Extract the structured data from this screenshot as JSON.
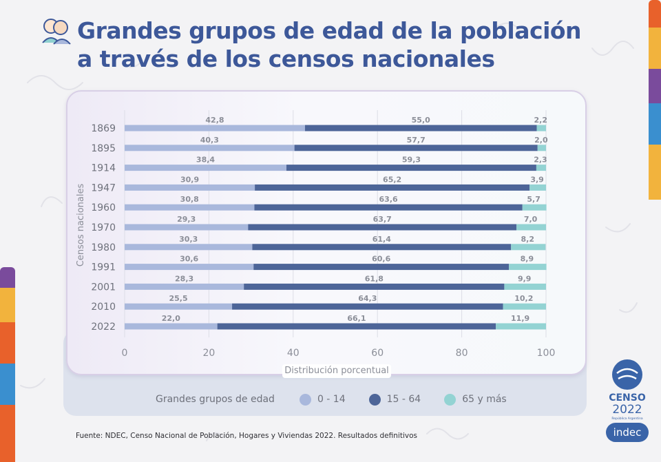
{
  "header": {
    "title_line1": "Grandes grupos de edad de la población",
    "title_line2": "a través de los censos nacionales"
  },
  "legend": {
    "title": "Grandes grupos de edad",
    "items": [
      {
        "label": "0 - 14",
        "color": "#a9b8dc"
      },
      {
        "label": "15 - 64",
        "color": "#4d6598"
      },
      {
        "label": "65 y más",
        "color": "#93d3d3"
      }
    ]
  },
  "source": "Fuente: NDEC, Censo Nacional de Población, Hogares y Viviendas 2022. Resultados definitivos",
  "logos": {
    "censo_word": "CENSO",
    "censo_year": "2022",
    "censo_sub": "República Argentina",
    "indec": "indec"
  },
  "chart_data": {
    "type": "bar",
    "orientation": "horizontal",
    "stacked": true,
    "xlabel": "Distribución porcentual",
    "ylabel": "Censos nacionales",
    "xlim": [
      0,
      100
    ],
    "x_ticks": [
      "0",
      "20",
      "40",
      "60",
      "80",
      "100"
    ],
    "categories": [
      "1869",
      "1895",
      "1914",
      "1947",
      "1960",
      "1970",
      "1980",
      "1991",
      "2001",
      "2010",
      "2022"
    ],
    "series": [
      {
        "name": "0 - 14",
        "color": "#a9b8dc",
        "values": [
          42.8,
          40.3,
          38.4,
          30.9,
          30.8,
          29.3,
          30.3,
          30.6,
          28.3,
          25.5,
          22.0
        ],
        "labels": [
          "42,8",
          "40,3",
          "38,4",
          "30,9",
          "30,8",
          "29,3",
          "30,3",
          "30,6",
          "28,3",
          "25,5",
          "22,0"
        ]
      },
      {
        "name": "15 - 64",
        "color": "#4d6598",
        "values": [
          55.0,
          57.7,
          59.3,
          65.2,
          63.6,
          63.7,
          61.4,
          60.6,
          61.8,
          64.3,
          66.1
        ],
        "labels": [
          "55,0",
          "57,7",
          "59,3",
          "65,2",
          "63,6",
          "63,7",
          "61,4",
          "60,6",
          "61,8",
          "64,3",
          "66,1"
        ]
      },
      {
        "name": "65 y más",
        "color": "#93d3d3",
        "values": [
          2.2,
          2.0,
          2.3,
          3.9,
          5.7,
          7.0,
          8.2,
          8.9,
          9.9,
          10.2,
          11.9
        ],
        "labels": [
          "2,2",
          "2,0",
          "2,3",
          "3,9",
          "5,7",
          "7,0",
          "8,2",
          "8,9",
          "9,9",
          "10,2",
          "11,9"
        ]
      }
    ],
    "grid": true,
    "legend_position": "bottom"
  }
}
